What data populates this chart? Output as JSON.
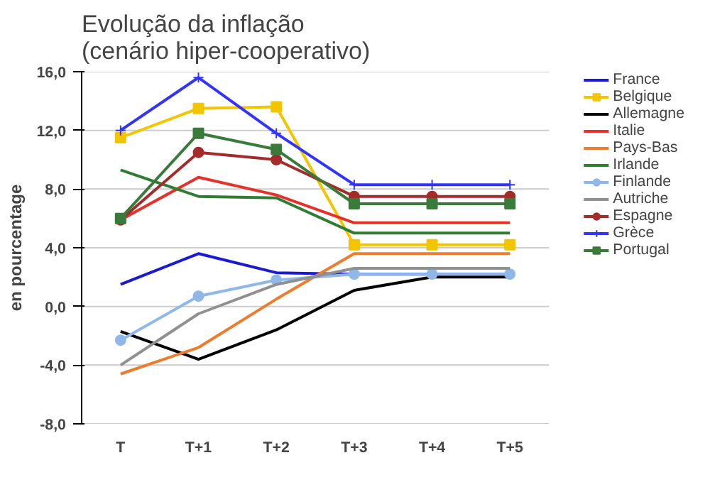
{
  "chart_data": {
    "type": "line",
    "title": "Evolução da inflação\n(cenário hiper-cooperativo)",
    "ylabel": "en pourcentage",
    "categories": [
      "T",
      "T+1",
      "T+2",
      "T+3",
      "T+4",
      "T+5"
    ],
    "ylim": [
      -8,
      16
    ],
    "yticks": [
      {
        "value": -8,
        "label": "-8,0"
      },
      {
        "value": -4,
        "label": "-4,0"
      },
      {
        "value": 0,
        "label": "0,0"
      },
      {
        "value": 4,
        "label": "4,0"
      },
      {
        "value": 8,
        "label": "8,0"
      },
      {
        "value": 12,
        "label": "12,0"
      },
      {
        "value": 16,
        "label": "16,0"
      }
    ],
    "grid": "y",
    "legend": "right",
    "series": [
      {
        "name": "France",
        "color": "#1a1ad6",
        "marker": "none",
        "values": [
          1.5,
          3.6,
          2.3,
          2.2,
          2.2,
          2.2
        ]
      },
      {
        "name": "Belgique",
        "color": "#f2c500",
        "marker": "square",
        "values": [
          11.5,
          13.5,
          13.6,
          4.2,
          4.2,
          4.2
        ]
      },
      {
        "name": "Allemagne",
        "color": "#000000",
        "marker": "none",
        "values": [
          -1.7,
          -3.6,
          -1.6,
          1.1,
          2.0,
          2.0
        ]
      },
      {
        "name": "Italie",
        "color": "#e8302a",
        "marker": "none",
        "values": [
          5.9,
          8.8,
          7.6,
          5.7,
          5.7,
          5.7
        ]
      },
      {
        "name": "Pays-Bas",
        "color": "#f07b2e",
        "marker": "none",
        "values": [
          -4.6,
          -2.8,
          0.5,
          3.6,
          3.6,
          3.6
        ]
      },
      {
        "name": "Irlande",
        "color": "#2e7d32",
        "marker": "none",
        "values": [
          9.3,
          7.5,
          7.4,
          5.0,
          5.0,
          5.0
        ]
      },
      {
        "name": "Finlande",
        "color": "#8fb8e8",
        "marker": "circle",
        "values": [
          -2.3,
          0.7,
          1.8,
          2.2,
          2.2,
          2.2
        ]
      },
      {
        "name": "Autriche",
        "color": "#909090",
        "marker": "none",
        "values": [
          -4.0,
          -0.5,
          1.5,
          2.6,
          2.6,
          2.6
        ]
      },
      {
        "name": "Espagne",
        "color": "#a52a2a",
        "marker": "circle",
        "values": [
          5.9,
          10.5,
          10.0,
          7.5,
          7.5,
          7.5
        ]
      },
      {
        "name": "Grèce",
        "color": "#3333ff",
        "marker": "cross",
        "values": [
          12.0,
          15.6,
          11.8,
          8.3,
          8.3,
          8.3
        ]
      },
      {
        "name": "Portugal",
        "color": "#3a7a3a",
        "marker": "square",
        "values": [
          6.0,
          11.8,
          10.7,
          7.0,
          7.0,
          7.0
        ]
      }
    ]
  }
}
